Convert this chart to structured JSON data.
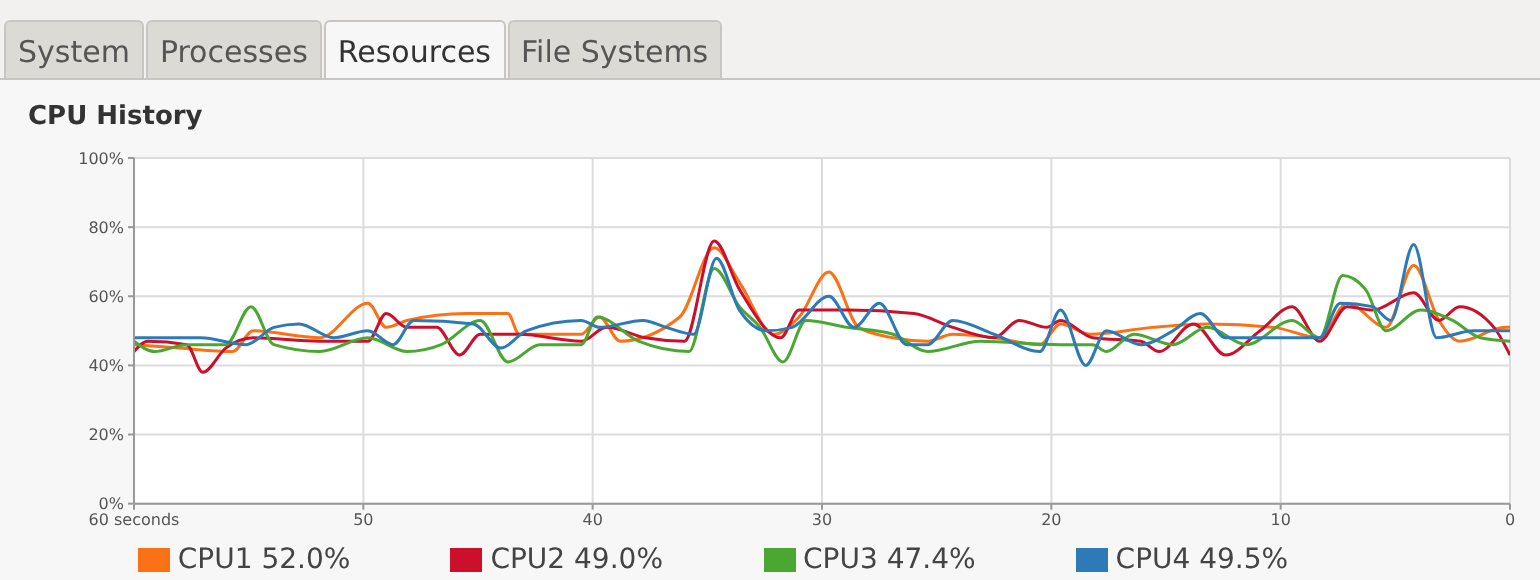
{
  "chart_data": {
    "type": "line",
    "title": "CPU History",
    "annotations": [
      "System",
      "Processes",
      "Resources",
      "File Systems"
    ],
    "xlim": [
      60,
      0
    ],
    "xticks": [
      {
        "value": 60,
        "label": "60 seconds"
      },
      50,
      40,
      30,
      20,
      10,
      0
    ],
    "ylim": [
      0,
      100
    ],
    "yticks": [
      {
        "value": 0,
        "label": "0%"
      },
      {
        "value": 20,
        "label": "20%"
      },
      {
        "value": 40,
        "label": "40%"
      },
      {
        "value": 60,
        "label": "60%"
      },
      {
        "value": 80,
        "label": "80%"
      },
      {
        "value": 100,
        "label": "100%"
      }
    ],
    "grid": true,
    "legend": "bottom",
    "marker": "none",
    "line_style": "solid",
    "series": [
      {
        "name": "CPU1  52.0%",
        "color": "#fc7116",
        "x": [
          60,
          58,
          55.7,
          54.8,
          51.9,
          49.8,
          49,
          48.1,
          45.5,
          43.7,
          43.2,
          40.5,
          39.7,
          38.8,
          36.2,
          34.7,
          33.6,
          32.1,
          31,
          29.7,
          28.4,
          26.9,
          25.4,
          24.3,
          22.5,
          20.5,
          19.6,
          18.3,
          15.6,
          13.2,
          10.3,
          8.3,
          7.1,
          5.4,
          4.2,
          3.1,
          2.2,
          0.2,
          0
        ],
        "values": [
          46,
          45,
          44,
          50,
          48,
          58,
          51,
          53,
          55,
          55,
          49,
          49,
          54,
          47,
          54,
          74,
          64,
          49,
          54,
          67,
          51,
          48,
          47,
          49,
          48,
          46,
          52,
          49,
          51,
          52,
          51,
          48,
          58,
          51,
          69,
          53,
          47,
          51,
          51
        ]
      },
      {
        "name": "CPU2  49.0%",
        "color": "#cc0f2a",
        "x": [
          60,
          59.4,
          57.7,
          57,
          56,
          54.8,
          51.9,
          49.8,
          49,
          48.1,
          46.8,
          45.8,
          44.9,
          43.2,
          40.5,
          39.4,
          37.7,
          36,
          34.7,
          33.6,
          31.8,
          31,
          28.9,
          26,
          24.3,
          22.5,
          21.4,
          20.2,
          19.6,
          18.2,
          16.1,
          15.3,
          13.8,
          12.4,
          10.9,
          9.5,
          8.3,
          7.1,
          6,
          4.2,
          3.1,
          2.2,
          0.7,
          0
        ],
        "values": [
          44,
          47,
          46,
          38,
          45,
          48,
          47,
          47,
          55,
          51,
          51,
          43,
          49,
          49,
          47,
          51,
          48,
          47,
          76,
          62,
          48,
          56,
          56,
          55,
          51,
          48,
          53,
          51,
          53,
          48,
          47,
          44,
          52,
          43,
          50,
          57,
          47,
          57,
          56,
          61,
          53,
          57,
          51,
          43
        ]
      },
      {
        "name": "CPU3  47.4%",
        "color": "#4aa832",
        "x": [
          60,
          59.1,
          57.7,
          56,
          54.9,
          53.9,
          51.9,
          49.8,
          48.1,
          46.6,
          44.9,
          43.7,
          42.3,
          40.5,
          39.8,
          38,
          35.8,
          34.7,
          33.6,
          32.7,
          31.7,
          30.7,
          28.9,
          26.9,
          25.4,
          23.1,
          19.6,
          18.2,
          17.6,
          16.4,
          14.7,
          13.2,
          11.5,
          9.5,
          8.3,
          7.3,
          6.3,
          5.4,
          3.9,
          2.5,
          1.3,
          0
        ],
        "values": [
          47,
          44,
          46,
          46,
          57,
          46,
          44,
          48,
          44,
          46,
          53,
          41,
          46,
          46,
          54,
          47,
          44,
          68,
          57,
          51,
          41,
          53,
          51,
          49,
          44,
          47,
          46,
          46,
          44,
          49,
          46,
          51,
          46,
          53,
          48,
          66,
          62,
          50,
          56,
          53,
          48,
          47
        ]
      },
      {
        "name": "CPU4  49.5%",
        "color": "#2c7bb6",
        "x": [
          60,
          58.9,
          57.1,
          55.1,
          53.9,
          52.8,
          51.3,
          49.8,
          48.7,
          47.8,
          45.2,
          44,
          42.9,
          40.5,
          39.7,
          37.8,
          36.8,
          35.6,
          34.6,
          33.6,
          32.4,
          31.3,
          29.7,
          28.6,
          27.5,
          26.3,
          25.4,
          24.3,
          22.5,
          20.5,
          19.6,
          18.5,
          17.6,
          16.1,
          14.7,
          13.5,
          12.4,
          10.3,
          8.3,
          7.4,
          6,
          5.2,
          4.2,
          3.2,
          1.6,
          0
        ],
        "values": [
          48,
          48,
          48,
          46,
          51,
          52,
          48,
          50,
          46,
          53,
          52,
          45,
          50,
          53,
          51,
          53,
          51,
          49,
          71,
          56,
          50,
          51,
          60,
          51,
          58,
          46,
          46,
          53,
          49,
          44,
          56,
          40,
          50,
          46,
          50,
          55,
          48,
          48,
          48,
          58,
          57,
          53,
          75,
          48,
          50,
          50
        ]
      }
    ]
  }
}
